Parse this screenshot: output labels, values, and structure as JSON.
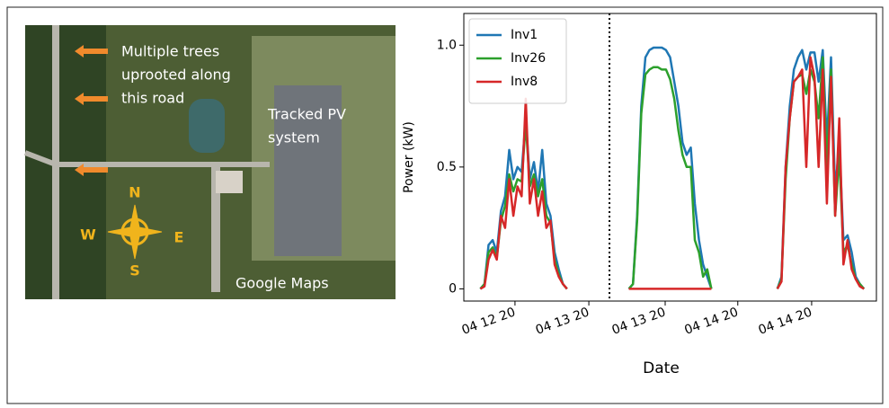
{
  "image": {
    "annotation_lines": [
      "Multiple trees",
      "uprooted along",
      "this road"
    ],
    "pv_label_lines": [
      "Tracked PV",
      "system"
    ],
    "source": "Google Maps",
    "compass": {
      "north": "N",
      "south": "S",
      "east": "E",
      "west": "W"
    }
  },
  "chart_data": {
    "type": "line",
    "xlabel": "Date",
    "ylabel": "Power (kW)",
    "x": [
      4,
      5,
      6,
      7,
      8,
      9,
      10,
      11,
      12,
      13,
      14,
      15,
      16,
      17,
      18,
      19,
      20,
      21,
      22,
      23,
      24,
      25,
      30,
      40,
      41,
      42,
      43,
      44,
      45,
      46,
      47,
      48,
      49,
      50,
      51,
      52,
      53,
      54,
      55,
      56,
      57,
      58,
      59,
      60,
      68,
      76,
      77,
      78,
      79,
      80,
      81,
      82,
      83,
      84,
      85,
      86,
      87,
      88,
      89,
      90,
      91,
      92,
      93,
      94,
      95,
      96,
      97
    ],
    "series": [
      {
        "name": "Inv1",
        "color": "#1f77b4",
        "values": [
          0,
          0.02,
          0.18,
          0.2,
          0.15,
          0.32,
          0.38,
          0.57,
          0.45,
          0.5,
          0.48,
          0.7,
          0.45,
          0.52,
          0.4,
          0.57,
          0.35,
          0.3,
          0.15,
          0.08,
          0.02,
          0,
          null,
          0,
          0.02,
          0.3,
          0.75,
          0.95,
          0.98,
          0.99,
          0.99,
          0.99,
          0.98,
          0.95,
          0.85,
          0.75,
          0.6,
          0.55,
          0.58,
          0.35,
          0.2,
          0.1,
          0.05,
          0,
          null,
          0,
          0.05,
          0.5,
          0.75,
          0.9,
          0.95,
          0.98,
          0.9,
          0.97,
          0.97,
          0.85,
          0.98,
          0.6,
          0.95,
          0.4,
          0.6,
          0.2,
          0.22,
          0.15,
          0.05,
          0.02,
          0
        ]
      },
      {
        "name": "Inv26",
        "color": "#2ca02c",
        "values": [
          0,
          0.02,
          0.15,
          0.17,
          0.13,
          0.28,
          0.34,
          0.47,
          0.4,
          0.45,
          0.44,
          0.68,
          0.42,
          0.47,
          0.38,
          0.45,
          0.3,
          0.27,
          0.12,
          0.06,
          0.02,
          0,
          null,
          0,
          0.02,
          0.28,
          0.72,
          0.88,
          0.9,
          0.91,
          0.91,
          0.9,
          0.9,
          0.86,
          0.78,
          0.65,
          0.55,
          0.5,
          0.5,
          0.2,
          0.15,
          0.05,
          0.08,
          0,
          null,
          0,
          0.04,
          0.45,
          0.7,
          0.85,
          0.87,
          0.88,
          0.8,
          0.9,
          0.85,
          0.7,
          0.95,
          0.5,
          0.9,
          0.3,
          0.55,
          0.15,
          0.18,
          0.1,
          0.04,
          0.02,
          0
        ]
      },
      {
        "name": "Inv8",
        "color": "#d62728",
        "values": [
          0,
          0.01,
          0.12,
          0.16,
          0.12,
          0.3,
          0.25,
          0.45,
          0.3,
          0.42,
          0.38,
          0.78,
          0.35,
          0.45,
          0.3,
          0.4,
          0.25,
          0.28,
          0.1,
          0.05,
          0.02,
          0,
          null,
          0,
          0,
          0,
          0,
          0,
          0,
          0,
          0,
          0,
          0,
          0,
          0,
          0,
          0,
          0,
          0,
          0,
          0,
          0,
          0,
          0,
          null,
          0,
          0.03,
          0.5,
          0.7,
          0.85,
          0.87,
          0.9,
          0.5,
          0.95,
          0.87,
          0.5,
          0.9,
          0.35,
          0.87,
          0.3,
          0.7,
          0.1,
          0.2,
          0.08,
          0.04,
          0.01,
          0
        ]
      }
    ],
    "xlim": [
      0,
      100
    ],
    "ylim": [
      -0.05,
      1.13
    ],
    "xticks": [
      {
        "value": 12.4,
        "label": "04 12 20"
      },
      {
        "value": 30.3,
        "label": "04 13 20"
      },
      {
        "value": 48.8,
        "label": "04 13 20"
      },
      {
        "value": 66.4,
        "label": "04 14 20"
      },
      {
        "value": 84.3,
        "label": "04 14 20"
      }
    ],
    "yticks": [
      0,
      0.5,
      {
        "value": 1,
        "label": "1.0"
      }
    ],
    "separator_x": 35.3,
    "legend": "upper left"
  }
}
